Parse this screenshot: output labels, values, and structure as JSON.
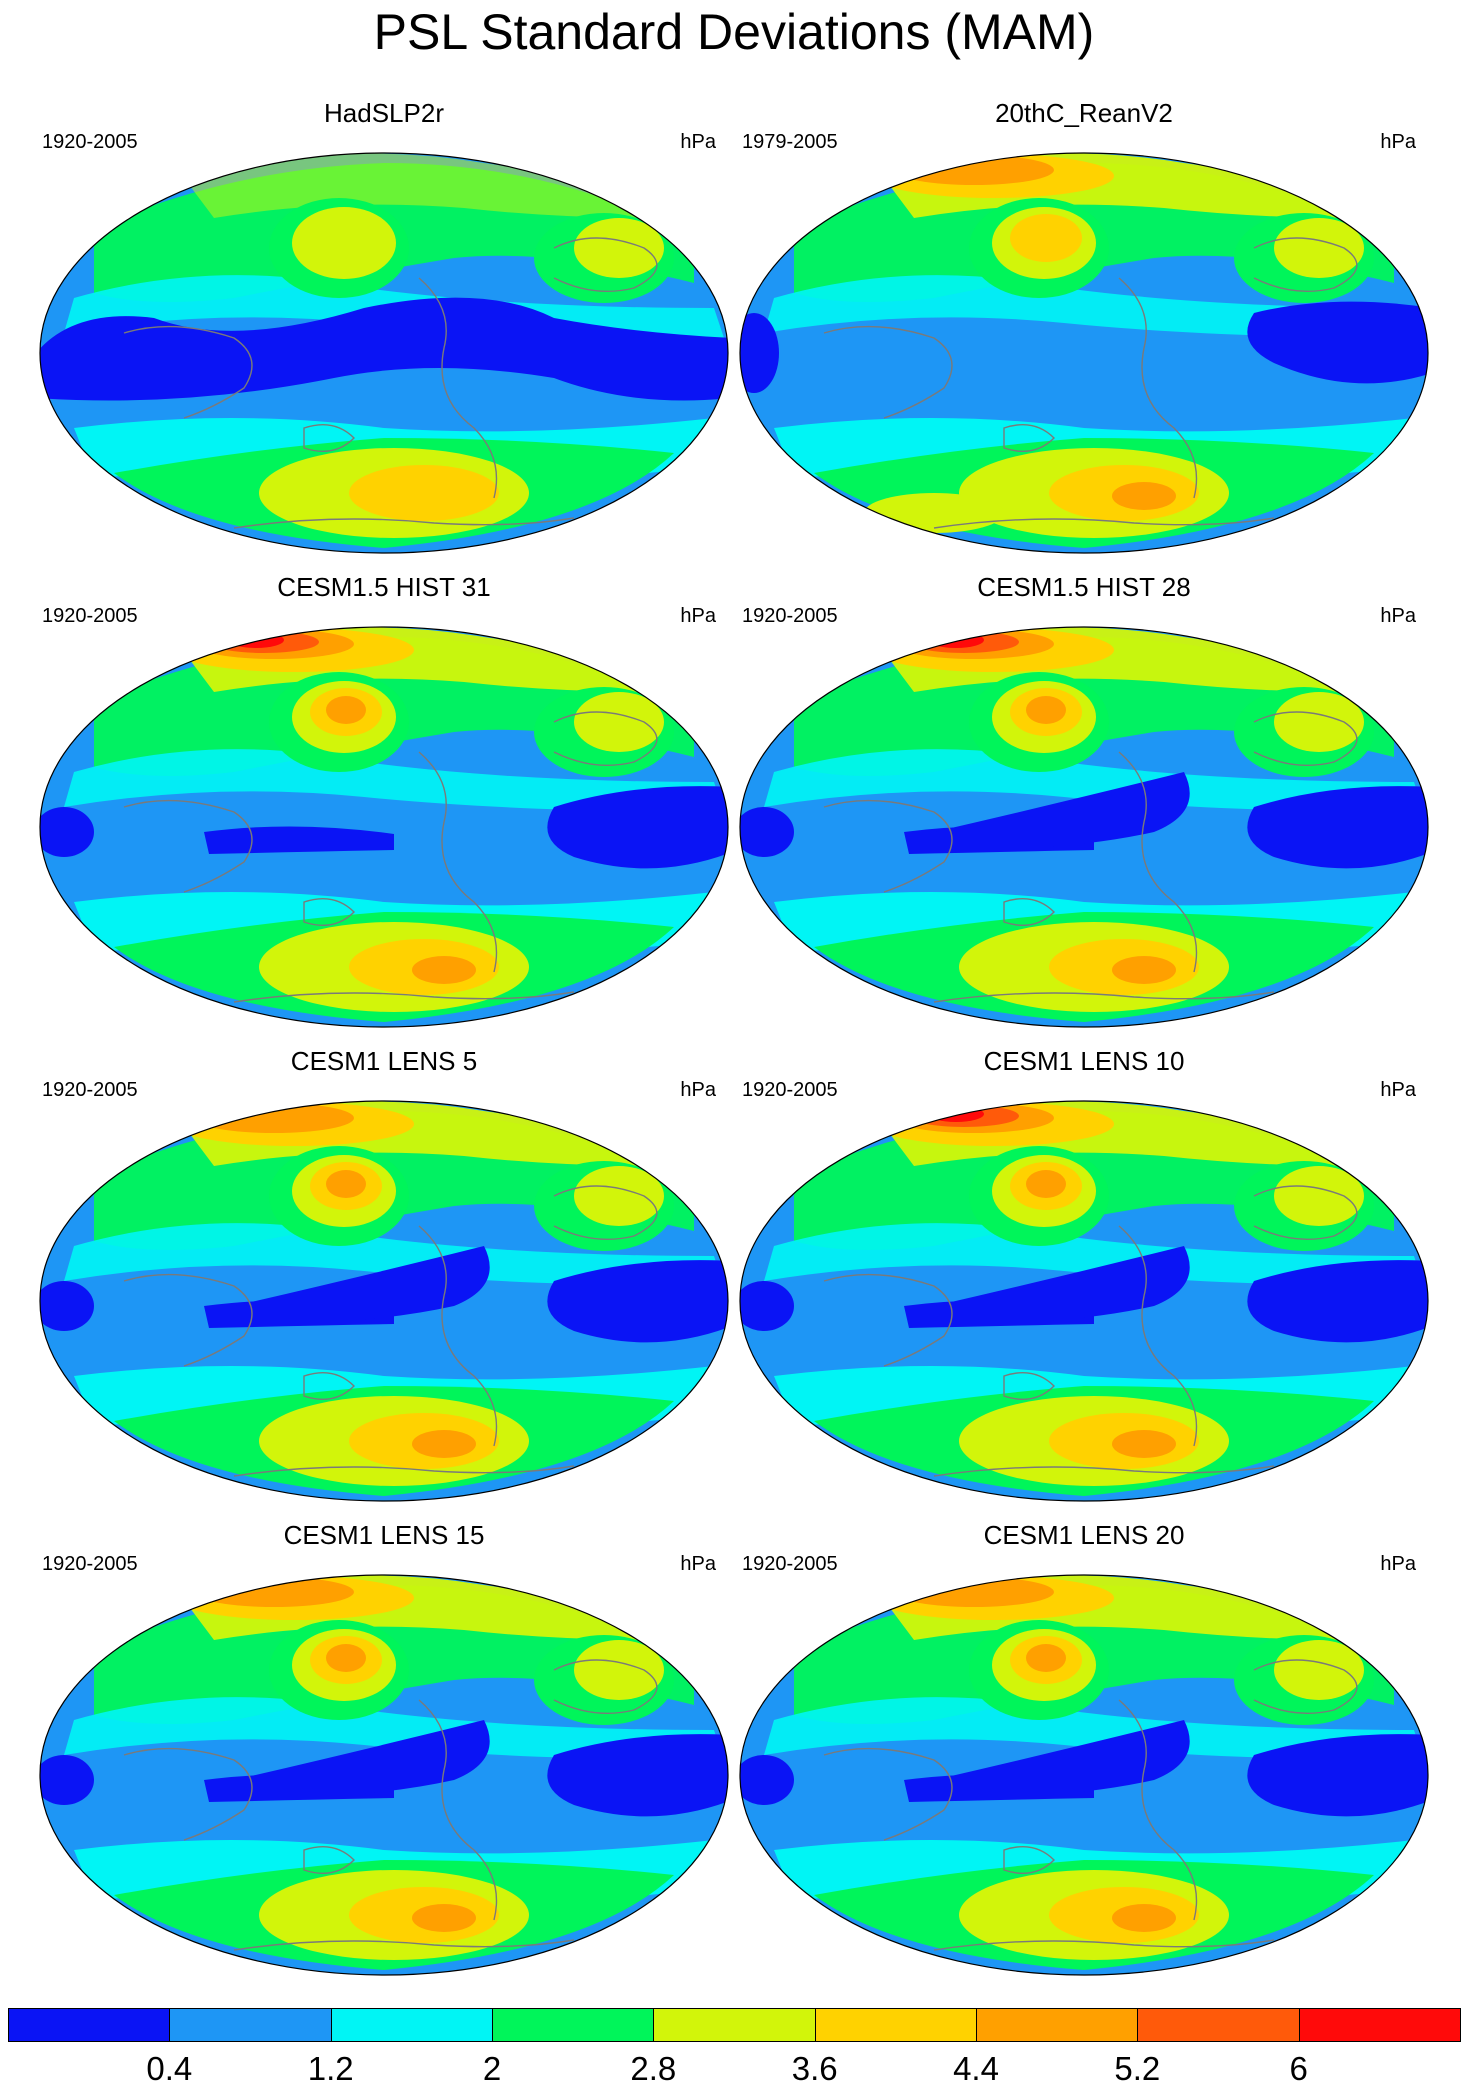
{
  "title": "PSL Standard Deviations (MAM)",
  "panels": [
    {
      "title": "HadSLP2r",
      "years": "1920-2005",
      "units": "hPa"
    },
    {
      "title": "20thC_ReanV2",
      "years": "1979-2005",
      "units": "hPa"
    },
    {
      "title": "CESM1.5 HIST 31",
      "years": "1920-2005",
      "units": "hPa"
    },
    {
      "title": "CESM1.5 HIST 28",
      "years": "1920-2005",
      "units": "hPa"
    },
    {
      "title": "CESM1 LENS 5",
      "years": "1920-2005",
      "units": "hPa"
    },
    {
      "title": "CESM1 LENS 10",
      "years": "1920-2005",
      "units": "hPa"
    },
    {
      "title": "CESM1 LENS 15",
      "years": "1920-2005",
      "units": "hPa"
    },
    {
      "title": "CESM1 LENS 20",
      "years": "1920-2005",
      "units": "hPa"
    }
  ],
  "colorbar": {
    "labels": [
      "0.4",
      "1.2",
      "2",
      "2.8",
      "3.6",
      "4.4",
      "5.2",
      "6"
    ],
    "colors": [
      "#0a14f5",
      "#1e96f5",
      "#00f5f5",
      "#00f55a",
      "#d2f50a",
      "#ffd200",
      "#ffa000",
      "#ff5a0a",
      "#ff0a0a"
    ]
  }
}
